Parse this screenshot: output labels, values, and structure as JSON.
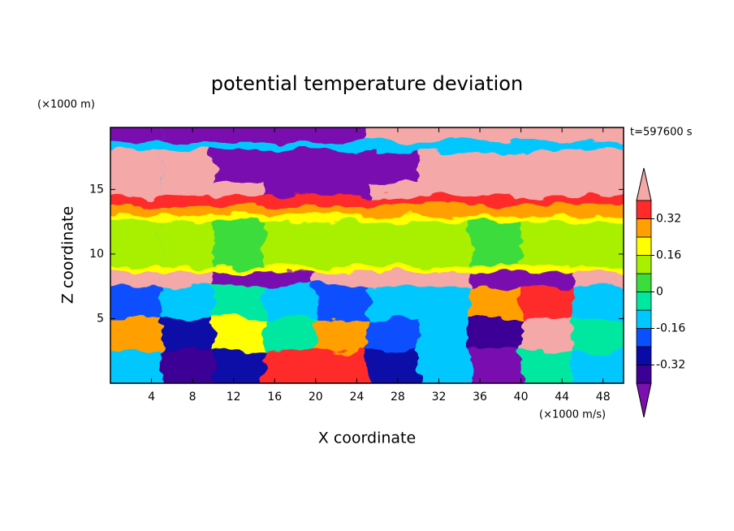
{
  "chart_data": {
    "type": "contour",
    "title": "potential temperature deviation",
    "x_label": "X coordinate",
    "y_label": "Z coordinate",
    "x_unit": "(×1000 m/s)",
    "y_unit": "(×1000 m)",
    "time_label": "t=597600 s",
    "xlim": [
      0,
      50
    ],
    "ylim": [
      0,
      19.8
    ],
    "xticks": [
      4,
      8,
      12,
      16,
      20,
      24,
      28,
      32,
      36,
      40,
      44,
      48
    ],
    "yticks": [
      5,
      10,
      15
    ],
    "colorbar": {
      "levels": [
        -0.4,
        -0.32,
        -0.24,
        -0.16,
        -0.08,
        0,
        0.08,
        0.16,
        0.24,
        0.32,
        0.4
      ],
      "colors": [
        "#7a10b0",
        "#3c0096",
        "#0a0aa8",
        "#0a50ff",
        "#00c8ff",
        "#00e8a0",
        "#3cdc3c",
        "#a8f000",
        "#ffff00",
        "#ffa000",
        "#ff2a2a",
        "#f5a8a8"
      ],
      "ticks": [
        0.32,
        0.16,
        0,
        -0.16,
        -0.32
      ]
    },
    "field": {
      "x": [
        0,
        5,
        10,
        15,
        20,
        25,
        30,
        35,
        40,
        45,
        50
      ],
      "rows": [
        {
          "z": [
            18,
            19.8
          ],
          "values": [
            -0.45,
            -0.45,
            -0.45,
            -0.45,
            -0.45,
            0.45,
            0.45,
            0.45,
            0.45,
            0.45
          ]
        },
        {
          "z": [
            15.5,
            18
          ],
          "values": [
            0.45,
            0.45,
            -0.45,
            -0.45,
            -0.45,
            -0.45,
            0.45,
            0.45,
            0.45,
            0.45
          ]
        },
        {
          "z": [
            14.5,
            15.5
          ],
          "values": [
            0.45,
            0.45,
            0.45,
            -0.45,
            -0.45,
            0.45,
            0.45,
            0.45,
            0.45,
            0.45
          ]
        },
        {
          "z": [
            13.8,
            14.5
          ],
          "values": [
            0.36,
            0.36,
            0.36,
            0.36,
            0.36,
            0.36,
            0.36,
            0.36,
            0.36,
            0.36
          ]
        },
        {
          "z": [
            13,
            13.8
          ],
          "values": [
            0.28,
            0.28,
            0.28,
            0.28,
            0.28,
            0.28,
            0.28,
            0.28,
            0.28,
            0.28
          ]
        },
        {
          "z": [
            12.5,
            13
          ],
          "values": [
            0.2,
            0.2,
            0.2,
            0.2,
            0.2,
            0.2,
            0.2,
            0.2,
            0.2,
            0.2
          ]
        },
        {
          "z": [
            9,
            12.5
          ],
          "values": [
            0.12,
            0.12,
            0.04,
            0.12,
            0.12,
            0.12,
            0.12,
            0.04,
            0.12,
            0.12
          ]
        },
        {
          "z": [
            8.6,
            9
          ],
          "values": [
            0.2,
            0.2,
            0.2,
            0.2,
            0.2,
            0.2,
            0.2,
            0.2,
            0.2,
            0.2
          ]
        },
        {
          "z": [
            7.5,
            8.6
          ],
          "values": [
            0.45,
            0.45,
            -0.45,
            -0.45,
            0.45,
            0.45,
            0.45,
            -0.45,
            -0.45,
            0.45
          ]
        },
        {
          "z": [
            5,
            7.5
          ],
          "values": [
            -0.2,
            -0.12,
            -0.04,
            -0.12,
            -0.2,
            -0.12,
            -0.12,
            0.28,
            0.36,
            -0.12
          ]
        },
        {
          "z": [
            2.5,
            5
          ],
          "values": [
            0.28,
            -0.28,
            0.2,
            -0.04,
            0.28,
            -0.2,
            -0.12,
            -0.36,
            0.45,
            -0.04
          ]
        },
        {
          "z": [
            0,
            2.5
          ],
          "values": [
            -0.12,
            -0.36,
            -0.28,
            0.36,
            0.36,
            -0.28,
            -0.12,
            -0.45,
            -0.04,
            -0.12
          ]
        }
      ]
    }
  }
}
